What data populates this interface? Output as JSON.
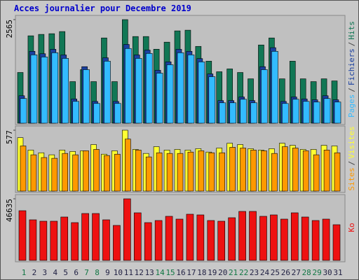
{
  "chart_data": [
    {
      "type": "bar",
      "title": "Acces journalier pour Decembre 2019",
      "ylim": [
        0,
        2565
      ],
      "yticks": [
        2565
      ],
      "legend_separator": "/",
      "series": [
        {
          "name": "Pages",
          "color": "#33bbff",
          "values": [
            611,
            1693,
            1640,
            1745,
            1605,
            541,
            1326,
            489,
            1536,
            489,
            1850,
            1605,
            1728,
            1239,
            1448,
            1745,
            1693,
            1518,
            1152,
            506,
            506,
            593,
            506,
            1326,
            1780,
            489,
            593,
            541,
            524,
            611,
            524
          ]
        },
        {
          "name": "Fichiers",
          "color": "#1a40a0",
          "values": [
            680,
            1780,
            1720,
            1830,
            1690,
            600,
            1400,
            540,
            1620,
            540,
            1950,
            1690,
            1810,
            1310,
            1520,
            1830,
            1780,
            1600,
            1220,
            560,
            560,
            650,
            560,
            1400,
            1870,
            540,
            650,
            600,
            580,
            680,
            580
          ]
        },
        {
          "name": "Hits",
          "color": "#117755",
          "values": [
            1256,
            2164,
            2199,
            2216,
            2269,
            1030,
            1326,
            1030,
            2111,
            1030,
            2565,
            2146,
            2146,
            1832,
            2007,
            2286,
            2303,
            1902,
            1536,
            1274,
            1344,
            1256,
            1099,
            1937,
            2111,
            1099,
            1536,
            1099,
            1030,
            1099,
            1047
          ]
        }
      ]
    },
    {
      "type": "bar",
      "ylim": [
        0,
        577
      ],
      "yticks": [
        577
      ],
      "legend_separator": "/",
      "series": [
        {
          "name": "Sites",
          "color": "#ff9900",
          "values": [
            428,
            344,
            318,
            311,
            357,
            344,
            382,
            395,
            337,
            350,
            493,
            389,
            324,
            363,
            357,
            357,
            370,
            382,
            363,
            363,
            415,
            408,
            389,
            382,
            357,
            421,
            408,
            382,
            344,
            389,
            363
          ]
        },
        {
          "name": "Visites",
          "color": "#ffff33",
          "values": [
            506,
            389,
            363,
            344,
            389,
            376,
            382,
            441,
            350,
            382,
            577,
            395,
            357,
            421,
            389,
            395,
            389,
            402,
            370,
            408,
            454,
            441,
            402,
            389,
            402,
            454,
            434,
            395,
            395,
            434,
            428
          ]
        }
      ]
    },
    {
      "type": "bar",
      "ylim": [
        0,
        46635
      ],
      "yticks": [
        46635
      ],
      "series": [
        {
          "name": "Ko",
          "color": "#ee1111",
          "values": [
            37630,
            30740,
            29680,
            29680,
            32860,
            28620,
            35510,
            35510,
            30740,
            26500,
            46635,
            36040,
            28620,
            30210,
            33390,
            31270,
            34980,
            34450,
            30210,
            29680,
            32330,
            37100,
            37100,
            33390,
            34450,
            31270,
            36040,
            32860,
            30210,
            31270,
            27030
          ]
        }
      ],
      "categories": [
        "1",
        "2",
        "3",
        "4",
        "5",
        "6",
        "7",
        "8",
        "9",
        "10",
        "11",
        "12",
        "13",
        "14",
        "15",
        "16",
        "17",
        "18",
        "19",
        "20",
        "21",
        "22",
        "23",
        "24",
        "25",
        "26",
        "27",
        "28",
        "29",
        "30",
        "31"
      ],
      "category_colors": [
        "#117744",
        "#222244",
        "#222244",
        "#222244",
        "#222244",
        "#222244",
        "#117744",
        "#117744",
        "#222244",
        "#222244",
        "#222244",
        "#222244",
        "#222244",
        "#117744",
        "#117744",
        "#222244",
        "#222244",
        "#222244",
        "#222244",
        "#222244",
        "#117744",
        "#117744",
        "#222244",
        "#222244",
        "#222244",
        "#222244",
        "#222244",
        "#117744",
        "#117744",
        "#222244",
        "#222244"
      ]
    }
  ]
}
